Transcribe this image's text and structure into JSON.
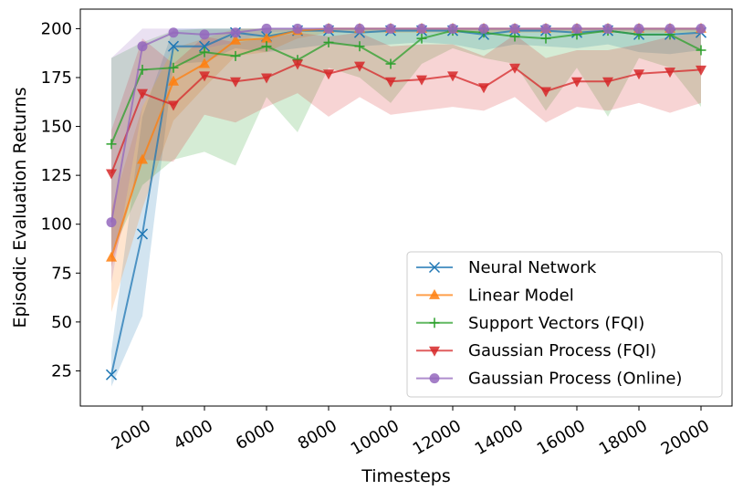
{
  "chart_data": {
    "type": "line",
    "title": "",
    "xlabel": "Timesteps",
    "ylabel": "Episodic Evaluation Returns",
    "xlim": [
      0,
      21000
    ],
    "ylim": [
      7,
      210
    ],
    "x_ticks": [
      2000,
      4000,
      6000,
      8000,
      10000,
      12000,
      14000,
      16000,
      18000,
      20000
    ],
    "x_tick_labels": [
      "2000",
      "4000",
      "6000",
      "8000",
      "10000",
      "12000",
      "14000",
      "16000",
      "18000",
      "20000"
    ],
    "y_ticks": [
      25,
      50,
      75,
      100,
      125,
      150,
      175,
      200
    ],
    "y_tick_labels": [
      "25",
      "50",
      "75",
      "100",
      "125",
      "150",
      "175",
      "200"
    ],
    "legend_position": "lower-right",
    "x": [
      1000,
      2000,
      3000,
      4000,
      5000,
      6000,
      7000,
      8000,
      9000,
      10000,
      11000,
      12000,
      13000,
      14000,
      15000,
      16000,
      17000,
      18000,
      19000,
      20000
    ],
    "series": [
      {
        "name": "Neural Network",
        "color": "#1f77b4",
        "marker": "x",
        "values": [
          23,
          95,
          191,
          191,
          198,
          196,
          199,
          199,
          198,
          199,
          199,
          199,
          197,
          199,
          199,
          198,
          199,
          197,
          197,
          198
        ],
        "lower": [
          17,
          53,
          182,
          183,
          190,
          188,
          190,
          192,
          191,
          192,
          193,
          192,
          189,
          192,
          191,
          190,
          192,
          188,
          187,
          189
        ],
        "upper": [
          35,
          155,
          200,
          200,
          200,
          200,
          200,
          200,
          200,
          200,
          200,
          200,
          200,
          200,
          200,
          200,
          200,
          200,
          200,
          200
        ]
      },
      {
        "name": "Linear Model",
        "color": "#ff7f0e",
        "marker": "triangle-up",
        "values": [
          83,
          133,
          173,
          182,
          194,
          195,
          199,
          200,
          200,
          200,
          200,
          200,
          200,
          200,
          200,
          200,
          200,
          200,
          200,
          200
        ],
        "lower": [
          55,
          108,
          153,
          170,
          186,
          188,
          195,
          198,
          198,
          198,
          198,
          198,
          198,
          198,
          198,
          198,
          198,
          198,
          198,
          198
        ],
        "upper": [
          108,
          160,
          190,
          195,
          200,
          200,
          200,
          200,
          200,
          200,
          200,
          200,
          200,
          200,
          200,
          200,
          200,
          200,
          200,
          200
        ]
      },
      {
        "name": "Support Vectors (FQI)",
        "color": "#2ca02c",
        "marker": "plus",
        "values": [
          141,
          179,
          180,
          188,
          186,
          191,
          184,
          193,
          191,
          182,
          195,
          199,
          198,
          196,
          195,
          197,
          199,
          197,
          197,
          189
        ],
        "lower": [
          85,
          120,
          133,
          137,
          130,
          165,
          147,
          180,
          175,
          162,
          182,
          190,
          185,
          182,
          158,
          180,
          155,
          185,
          180,
          160
        ],
        "upper": [
          185,
          193,
          199,
          200,
          200,
          200,
          200,
          200,
          200,
          200,
          200,
          200,
          200,
          200,
          200,
          200,
          200,
          200,
          200,
          200
        ]
      },
      {
        "name": "Gaussian Process (FQI)",
        "color": "#d62728",
        "marker": "triangle-down",
        "values": [
          126,
          167,
          161,
          176,
          173,
          175,
          182,
          177,
          181,
          173,
          174,
          176,
          170,
          180,
          168,
          173,
          173,
          177,
          178,
          179
        ],
        "lower": [
          78,
          133,
          132,
          156,
          152,
          160,
          167,
          155,
          165,
          156,
          158,
          160,
          158,
          165,
          152,
          160,
          158,
          162,
          157,
          162
        ],
        "upper": [
          148,
          195,
          182,
          196,
          193,
          195,
          198,
          196,
          198,
          191,
          192,
          192,
          186,
          197,
          185,
          189,
          189,
          192,
          196,
          198
        ]
      },
      {
        "name": "Gaussian Process (Online)",
        "color": "#9467bd",
        "marker": "circle",
        "values": [
          101,
          191,
          198,
          197,
          198,
          200,
          200,
          200,
          200,
          200,
          200,
          200,
          200,
          200,
          200,
          200,
          200,
          200,
          200,
          200
        ],
        "lower": [
          70,
          160,
          190,
          190,
          193,
          198,
          199,
          199,
          199,
          199,
          199,
          199,
          199,
          199,
          199,
          199,
          199,
          199,
          199,
          199
        ],
        "upper": [
          185,
          200,
          200,
          200,
          200,
          200,
          200,
          200,
          200,
          200,
          200,
          200,
          200,
          200,
          200,
          200,
          200,
          200,
          200,
          200
        ]
      }
    ]
  }
}
